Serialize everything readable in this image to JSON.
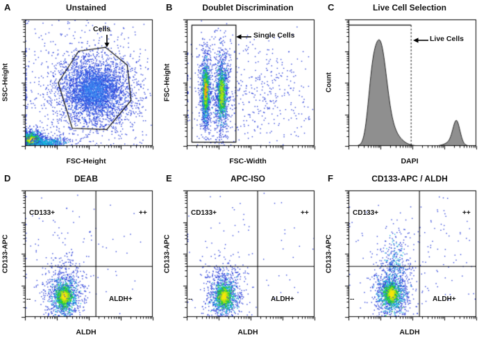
{
  "figure": {
    "panels": [
      {
        "letter": "A",
        "title": "Unstained",
        "xlabel": "FSC-Height",
        "ylabel": "SSC-Height",
        "gate_label": "Cells"
      },
      {
        "letter": "B",
        "title": "Doublet Discrimination",
        "xlabel": "FSC-Width",
        "ylabel": "FSC-Height",
        "gate_label": "Single Cells"
      },
      {
        "letter": "C",
        "title": "Live Cell Selection",
        "xlabel": "DAPI",
        "ylabel": "Count",
        "gate_label": "Live Cells"
      },
      {
        "letter": "D",
        "title": "DEAB",
        "xlabel": "ALDH",
        "ylabel": "CD133-APC",
        "quadrants": {
          "tl": "CD133+",
          "tr": "++",
          "bl": "--",
          "br": "ALDH+"
        }
      },
      {
        "letter": "E",
        "title": "APC-ISO",
        "xlabel": "ALDH",
        "ylabel": "CD133-APC",
        "quadrants": {
          "tl": "CD133+",
          "tr": "++",
          "bl": "--",
          "br": "ALDH+"
        }
      },
      {
        "letter": "F",
        "title": "CD133-APC / ALDH",
        "xlabel": "ALDH",
        "ylabel": "CD133-APC",
        "quadrants": {
          "tl": "CD133+",
          "tr": "++",
          "bl": "--",
          "br": "ALDH+"
        }
      }
    ]
  },
  "chart_data": [
    {
      "panel": "A",
      "type": "scatter",
      "title": "Unstained",
      "xlabel": "FSC-Height",
      "ylabel": "SSC-Height",
      "axis_scale": "log-style-ticks",
      "gate_label": "Cells",
      "populations": [
        {
          "cx": 0.54,
          "cy": 0.44,
          "sx": 0.16,
          "sy": 0.15,
          "layers": [
            {
              "n": 2400,
              "s": 1.0,
              "color": "#2a3fd8"
            },
            {
              "n": 1100,
              "s": 0.62,
              "color": "#2f62e6"
            },
            {
              "n": 350,
              "s": 0.36,
              "color": "#3b8cf0"
            }
          ]
        },
        {
          "cx": 0.5,
          "cy": 0.48,
          "sx": 0.36,
          "sy": 0.34,
          "layers": [
            {
              "n": 650,
              "s": 1.0,
              "color": "#2a3fd8"
            }
          ]
        },
        {
          "cx": 0.05,
          "cy": 0.05,
          "sx": 0.055,
          "sy": 0.042,
          "layers": [
            {
              "n": 700,
              "s": 1.0,
              "color": "#2a3fd8"
            },
            {
              "n": 520,
              "s": 0.62,
              "color": "#17b8d8"
            },
            {
              "n": 430,
              "s": 0.4,
              "color": "#27cc2e"
            },
            {
              "n": 280,
              "s": 0.24,
              "color": "#b8e312"
            },
            {
              "n": 130,
              "s": 0.14,
              "color": "#f6e60e"
            }
          ]
        },
        {
          "cx": 0.17,
          "cy": 0.03,
          "sx": 0.11,
          "sy": 0.025,
          "layers": [
            {
              "n": 380,
              "s": 1.0,
              "color": "#2a3fd8"
            },
            {
              "n": 160,
              "s": 0.6,
              "color": "#17b8d8"
            }
          ]
        }
      ],
      "gates": [
        {
          "type": "polygon",
          "points": [
            [
              0.42,
              0.75
            ],
            [
              0.63,
              0.78
            ],
            [
              0.8,
              0.64
            ],
            [
              0.83,
              0.36
            ],
            [
              0.64,
              0.13
            ],
            [
              0.37,
              0.14
            ],
            [
              0.26,
              0.5
            ]
          ]
        }
      ]
    },
    {
      "panel": "B",
      "type": "scatter",
      "title": "Doublet Discrimination",
      "xlabel": "FSC-Width",
      "ylabel": "FSC-Height",
      "axis_scale": "log-style-ticks",
      "gate_label": "Single Cells",
      "populations": [
        {
          "cx": 0.145,
          "cy": 0.43,
          "sx": 0.022,
          "sy": 0.16,
          "layers": [
            {
              "n": 850,
              "s": 1.0,
              "color": "#2a3fd8"
            },
            {
              "n": 460,
              "s": 0.62,
              "color": "#17b8d8"
            },
            {
              "n": 380,
              "s": 0.4,
              "color": "#27cc2e"
            },
            {
              "n": 210,
              "s": 0.25,
              "color": "#b8e312"
            },
            {
              "n": 90,
              "s": 0.15,
              "color": "#f6a60e"
            }
          ]
        },
        {
          "cx": 0.27,
          "cy": 0.42,
          "sx": 0.03,
          "sy": 0.18,
          "layers": [
            {
              "n": 750,
              "s": 1.0,
              "color": "#2a3fd8"
            },
            {
              "n": 420,
              "s": 0.62,
              "color": "#17b8d8"
            },
            {
              "n": 300,
              "s": 0.4,
              "color": "#27cc2e"
            },
            {
              "n": 130,
              "s": 0.25,
              "color": "#b8e312"
            }
          ]
        },
        {
          "cx": 0.55,
          "cy": 0.42,
          "sx": 0.26,
          "sy": 0.22,
          "layers": [
            {
              "n": 420,
              "s": 1.0,
              "color": "#2a3fd8"
            }
          ]
        },
        {
          "cx": 0.22,
          "cy": 0.5,
          "sx": 0.14,
          "sy": 0.3,
          "layers": [
            {
              "n": 160,
              "s": 1.0,
              "color": "#2a3fd8"
            }
          ]
        }
      ],
      "gates": [
        {
          "type": "rect",
          "x0": 0.04,
          "y0": 0.03,
          "x1": 0.385,
          "y1": 0.955
        }
      ]
    },
    {
      "panel": "C",
      "type": "histogram",
      "title": "Live Cell Selection",
      "xlabel": "DAPI",
      "ylabel": "Count",
      "gate_label": "Live Cells",
      "fill": "#8f8f8f",
      "peaks": [
        {
          "mu": 0.245,
          "sig": 0.05,
          "amp": 1.0
        },
        {
          "mu": 0.315,
          "sig": 0.075,
          "amp": 0.18
        },
        {
          "mu": 0.18,
          "sig": 0.032,
          "amp": 0.38
        },
        {
          "mu": 0.845,
          "sig": 0.027,
          "amp": 0.24
        },
        {
          "mu": 0.815,
          "sig": 0.05,
          "amp": 0.05
        }
      ],
      "gates": [
        {
          "type": "hline",
          "y": 0.955,
          "x0": 0.0,
          "x1": 0.49
        },
        {
          "type": "vline-dashed",
          "x": 0.49,
          "y0": 0.0,
          "y1": 0.955
        }
      ]
    },
    {
      "panel": "D",
      "type": "scatter",
      "title": "DEAB",
      "xlabel": "ALDH",
      "ylabel": "CD133-APC",
      "quadrants": {
        "tl": "CD133+",
        "tr": "++",
        "bl": "--",
        "br": "ALDH+"
      },
      "populations": [
        {
          "cx": 0.305,
          "cy": 0.165,
          "sx": 0.05,
          "sy": 0.07,
          "layers": [
            {
              "n": 700,
              "s": 1.5,
              "color": "#2a3fd8"
            },
            {
              "n": 520,
              "s": 0.85,
              "color": "#17b8d8"
            },
            {
              "n": 430,
              "s": 0.52,
              "color": "#27cc2e"
            },
            {
              "n": 260,
              "s": 0.3,
              "color": "#b8e312"
            },
            {
              "n": 110,
              "s": 0.17,
              "color": "#f6e60e"
            }
          ]
        },
        {
          "cx": 0.31,
          "cy": 0.34,
          "sx": 0.1,
          "sy": 0.14,
          "layers": [
            {
              "n": 150,
              "s": 1.0,
              "color": "#2a3fd8"
            }
          ]
        },
        {
          "cx": 0.45,
          "cy": 0.5,
          "sx": 0.3,
          "sy": 0.27,
          "layers": [
            {
              "n": 90,
              "s": 1.0,
              "color": "#2a3fd8"
            }
          ]
        }
      ],
      "gates": [
        {
          "type": "cross",
          "x": 0.555,
          "y": 0.4
        }
      ]
    },
    {
      "panel": "E",
      "type": "scatter",
      "title": "APC-ISO",
      "xlabel": "ALDH",
      "ylabel": "CD133-APC",
      "quadrants": {
        "tl": "CD133+",
        "tr": "++",
        "bl": "--",
        "br": "ALDH+"
      },
      "populations": [
        {
          "cx": 0.29,
          "cy": 0.165,
          "sx": 0.048,
          "sy": 0.072,
          "layers": [
            {
              "n": 680,
              "s": 1.5,
              "color": "#2a3fd8"
            },
            {
              "n": 500,
              "s": 0.85,
              "color": "#17b8d8"
            },
            {
              "n": 420,
              "s": 0.52,
              "color": "#27cc2e"
            },
            {
              "n": 250,
              "s": 0.3,
              "color": "#b8e312"
            },
            {
              "n": 100,
              "s": 0.17,
              "color": "#f6e60e"
            }
          ]
        },
        {
          "cx": 0.3,
          "cy": 0.33,
          "sx": 0.09,
          "sy": 0.13,
          "layers": [
            {
              "n": 120,
              "s": 1.0,
              "color": "#2a3fd8"
            }
          ]
        },
        {
          "cx": 0.45,
          "cy": 0.5,
          "sx": 0.3,
          "sy": 0.27,
          "layers": [
            {
              "n": 80,
              "s": 1.0,
              "color": "#2a3fd8"
            }
          ]
        }
      ],
      "gates": [
        {
          "type": "cross",
          "x": 0.555,
          "y": 0.4
        }
      ]
    },
    {
      "panel": "F",
      "type": "scatter",
      "title": "CD133-APC / ALDH",
      "xlabel": "ALDH",
      "ylabel": "CD133-APC",
      "quadrants": {
        "tl": "CD133+",
        "tr": "++",
        "bl": "--",
        "br": "ALDH+"
      },
      "populations": [
        {
          "cx": 0.335,
          "cy": 0.185,
          "sx": 0.052,
          "sy": 0.075,
          "layers": [
            {
              "n": 720,
              "s": 1.5,
              "color": "#2a3fd8"
            },
            {
              "n": 520,
              "s": 0.85,
              "color": "#17b8d8"
            },
            {
              "n": 430,
              "s": 0.52,
              "color": "#27cc2e"
            },
            {
              "n": 260,
              "s": 0.3,
              "color": "#b8e312"
            },
            {
              "n": 110,
              "s": 0.17,
              "color": "#f6e60e"
            }
          ]
        },
        {
          "cx": 0.36,
          "cy": 0.42,
          "sx": 0.07,
          "sy": 0.15,
          "layers": [
            {
              "n": 240,
              "s": 1.0,
              "color": "#2a3fd8"
            },
            {
              "n": 80,
              "s": 0.6,
              "color": "#17b8d8"
            }
          ]
        },
        {
          "cx": 0.5,
          "cy": 0.55,
          "sx": 0.28,
          "sy": 0.26,
          "layers": [
            {
              "n": 140,
              "s": 1.0,
              "color": "#2a3fd8"
            }
          ]
        }
      ],
      "gates": [
        {
          "type": "cross",
          "x": 0.555,
          "y": 0.4
        }
      ]
    }
  ]
}
